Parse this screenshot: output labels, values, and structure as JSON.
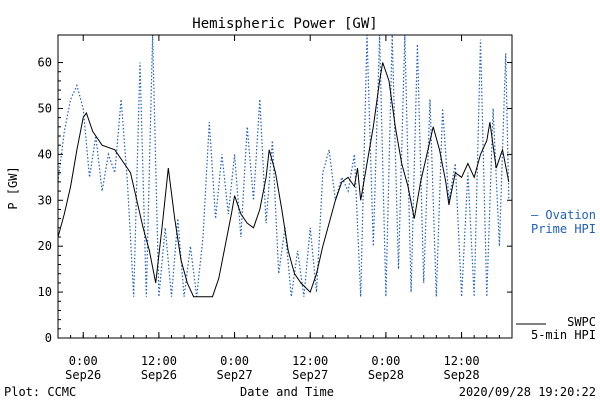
{
  "chart_data": {
    "type": "line",
    "title": "Hemispheric Power [GW]",
    "xlabel": "Date and Time",
    "ylabel": "P [GW]",
    "ylim": [
      0,
      66
    ],
    "xlim_hours_note": "",
    "x_start": "2020-09-25T20:00",
    "x_end": "2020-09-28T20:00",
    "x_ticks": [
      {
        "time": "2020-09-26T00:00",
        "top": "0:00",
        "bottom": "Sep26"
      },
      {
        "time": "2020-09-26T12:00",
        "top": "12:00",
        "bottom": "Sep26"
      },
      {
        "time": "2020-09-27T00:00",
        "top": "0:00",
        "bottom": "Sep27"
      },
      {
        "time": "2020-09-27T12:00",
        "top": "12:00",
        "bottom": "Sep27"
      },
      {
        "time": "2020-09-28T00:00",
        "top": "0:00",
        "bottom": "Sep28"
      },
      {
        "time": "2020-09-28T12:00",
        "top": "12:00",
        "bottom": "Sep28"
      }
    ],
    "y_ticks": [
      0,
      10,
      20,
      30,
      40,
      50,
      60
    ],
    "series": [
      {
        "name_lines": [
          "SWPC",
          "5-min HPI"
        ],
        "color": "#000000",
        "style": "solid",
        "points": [
          [
            "2020-09-25T20:00",
            22
          ],
          [
            "2020-09-25T21:00",
            27
          ],
          [
            "2020-09-25T22:00",
            33
          ],
          [
            "2020-09-25T23:00",
            41
          ],
          [
            "2020-09-26T00:00",
            48
          ],
          [
            "2020-09-26T00:30",
            49
          ],
          [
            "2020-09-26T01:30",
            45
          ],
          [
            "2020-09-26T03:00",
            42
          ],
          [
            "2020-09-26T05:00",
            41
          ],
          [
            "2020-09-26T06:30",
            38
          ],
          [
            "2020-09-26T07:30",
            36
          ],
          [
            "2020-09-26T08:30",
            30
          ],
          [
            "2020-09-26T09:30",
            24
          ],
          [
            "2020-09-26T10:30",
            19
          ],
          [
            "2020-09-26T11:30",
            12
          ],
          [
            "2020-09-26T12:30",
            24
          ],
          [
            "2020-09-26T13:30",
            37
          ],
          [
            "2020-09-26T14:30",
            26
          ],
          [
            "2020-09-26T15:30",
            17
          ],
          [
            "2020-09-26T16:30",
            12
          ],
          [
            "2020-09-26T17:30",
            9
          ],
          [
            "2020-09-26T19:00",
            9
          ],
          [
            "2020-09-26T20:30",
            9
          ],
          [
            "2020-09-26T21:30",
            13
          ],
          [
            "2020-09-26T22:30",
            20
          ],
          [
            "2020-09-26T23:30",
            27
          ],
          [
            "2020-09-27T00:00",
            31
          ],
          [
            "2020-09-27T01:00",
            27
          ],
          [
            "2020-09-27T02:00",
            25
          ],
          [
            "2020-09-27T03:00",
            24
          ],
          [
            "2020-09-27T04:00",
            28
          ],
          [
            "2020-09-27T05:00",
            35
          ],
          [
            "2020-09-27T05:30",
            41
          ],
          [
            "2020-09-27T06:30",
            36
          ],
          [
            "2020-09-27T07:30",
            28
          ],
          [
            "2020-09-27T08:30",
            19
          ],
          [
            "2020-09-27T09:30",
            14
          ],
          [
            "2020-09-27T10:30",
            12
          ],
          [
            "2020-09-27T12:00",
            10
          ],
          [
            "2020-09-27T13:00",
            14
          ],
          [
            "2020-09-27T14:00",
            20
          ],
          [
            "2020-09-27T15:00",
            25
          ],
          [
            "2020-09-27T16:00",
            30
          ],
          [
            "2020-09-27T17:00",
            34
          ],
          [
            "2020-09-27T18:00",
            35
          ],
          [
            "2020-09-27T19:00",
            33
          ],
          [
            "2020-09-27T19:30",
            37
          ],
          [
            "2020-09-27T20:00",
            30
          ],
          [
            "2020-09-27T21:00",
            38
          ],
          [
            "2020-09-27T22:00",
            46
          ],
          [
            "2020-09-27T23:00",
            56
          ],
          [
            "2020-09-27T23:30",
            60
          ],
          [
            "2020-09-28T00:30",
            56
          ],
          [
            "2020-09-28T01:30",
            46
          ],
          [
            "2020-09-28T02:30",
            38
          ],
          [
            "2020-09-28T03:30",
            33
          ],
          [
            "2020-09-28T04:30",
            26
          ],
          [
            "2020-09-28T05:30",
            34
          ],
          [
            "2020-09-28T06:30",
            40
          ],
          [
            "2020-09-28T07:30",
            46
          ],
          [
            "2020-09-28T08:30",
            41
          ],
          [
            "2020-09-28T09:30",
            34
          ],
          [
            "2020-09-28T10:00",
            29
          ],
          [
            "2020-09-28T11:00",
            36
          ],
          [
            "2020-09-28T12:00",
            35
          ],
          [
            "2020-09-28T13:00",
            38
          ],
          [
            "2020-09-28T14:00",
            35
          ],
          [
            "2020-09-28T15:00",
            40
          ],
          [
            "2020-09-28T16:00",
            43
          ],
          [
            "2020-09-28T16:30",
            47
          ],
          [
            "2020-09-28T17:30",
            37
          ],
          [
            "2020-09-28T18:30",
            41
          ],
          [
            "2020-09-28T19:30",
            34
          ]
        ]
      },
      {
        "name_lines": [
          "— Ovation",
          "Prime HPI"
        ],
        "color": "#1f5fbf",
        "style": "dotted",
        "points": [
          [
            "2020-09-25T20:00",
            34
          ],
          [
            "2020-09-25T21:00",
            45
          ],
          [
            "2020-09-25T22:00",
            52
          ],
          [
            "2020-09-25T23:00",
            55
          ],
          [
            "2020-09-26T00:00",
            50
          ],
          [
            "2020-09-26T01:00",
            35
          ],
          [
            "2020-09-26T02:00",
            44
          ],
          [
            "2020-09-26T03:00",
            32
          ],
          [
            "2020-09-26T04:00",
            40
          ],
          [
            "2020-09-26T05:00",
            36
          ],
          [
            "2020-09-26T06:00",
            52
          ],
          [
            "2020-09-26T07:00",
            34
          ],
          [
            "2020-09-26T08:00",
            9
          ],
          [
            "2020-09-26T09:00",
            60
          ],
          [
            "2020-09-26T10:00",
            9
          ],
          [
            "2020-09-26T11:00",
            66
          ],
          [
            "2020-09-26T12:00",
            9
          ],
          [
            "2020-09-26T13:00",
            24
          ],
          [
            "2020-09-26T14:00",
            9
          ],
          [
            "2020-09-26T15:00",
            26
          ],
          [
            "2020-09-26T16:00",
            9
          ],
          [
            "2020-09-26T17:00",
            20
          ],
          [
            "2020-09-26T18:00",
            9
          ],
          [
            "2020-09-26T19:00",
            22
          ],
          [
            "2020-09-26T20:00",
            47
          ],
          [
            "2020-09-26T21:00",
            26
          ],
          [
            "2020-09-26T22:00",
            40
          ],
          [
            "2020-09-26T23:00",
            27
          ],
          [
            "2020-09-27T00:00",
            40
          ],
          [
            "2020-09-27T01:00",
            22
          ],
          [
            "2020-09-27T02:00",
            46
          ],
          [
            "2020-09-27T03:00",
            30
          ],
          [
            "2020-09-27T04:00",
            52
          ],
          [
            "2020-09-27T05:00",
            25
          ],
          [
            "2020-09-27T06:00",
            43
          ],
          [
            "2020-09-27T07:00",
            14
          ],
          [
            "2020-09-27T08:00",
            24
          ],
          [
            "2020-09-27T09:00",
            9
          ],
          [
            "2020-09-27T10:00",
            19
          ],
          [
            "2020-09-27T11:00",
            9
          ],
          [
            "2020-09-27T12:00",
            24
          ],
          [
            "2020-09-27T13:00",
            10
          ],
          [
            "2020-09-27T14:00",
            36
          ],
          [
            "2020-09-27T15:00",
            41
          ],
          [
            "2020-09-27T16:00",
            30
          ],
          [
            "2020-09-27T17:00",
            35
          ],
          [
            "2020-09-27T18:00",
            32
          ],
          [
            "2020-09-27T19:00",
            40
          ],
          [
            "2020-09-27T20:00",
            9
          ],
          [
            "2020-09-27T21:00",
            66
          ],
          [
            "2020-09-27T22:00",
            20
          ],
          [
            "2020-09-27T23:00",
            66
          ],
          [
            "2020-09-28T00:00",
            9
          ],
          [
            "2020-09-28T01:00",
            66
          ],
          [
            "2020-09-28T02:00",
            15
          ],
          [
            "2020-09-28T03:00",
            66
          ],
          [
            "2020-09-28T04:00",
            10
          ],
          [
            "2020-09-28T05:00",
            64
          ],
          [
            "2020-09-28T06:00",
            12
          ],
          [
            "2020-09-28T07:00",
            52
          ],
          [
            "2020-09-28T08:00",
            9
          ],
          [
            "2020-09-28T09:00",
            50
          ],
          [
            "2020-09-28T10:00",
            30
          ],
          [
            "2020-09-28T11:00",
            38
          ],
          [
            "2020-09-28T12:00",
            9
          ],
          [
            "2020-09-28T13:00",
            36
          ],
          [
            "2020-09-28T14:00",
            9
          ],
          [
            "2020-09-28T15:00",
            65
          ],
          [
            "2020-09-28T16:00",
            9
          ],
          [
            "2020-09-28T17:00",
            50
          ],
          [
            "2020-09-28T18:00",
            20
          ],
          [
            "2020-09-28T19:00",
            62
          ],
          [
            "2020-09-28T19:30",
            30
          ]
        ]
      }
    ],
    "footer": {
      "left": "Plot: CCMC",
      "right": "2020/09/28 19:20:22"
    },
    "legend_placement": "right-outside"
  }
}
